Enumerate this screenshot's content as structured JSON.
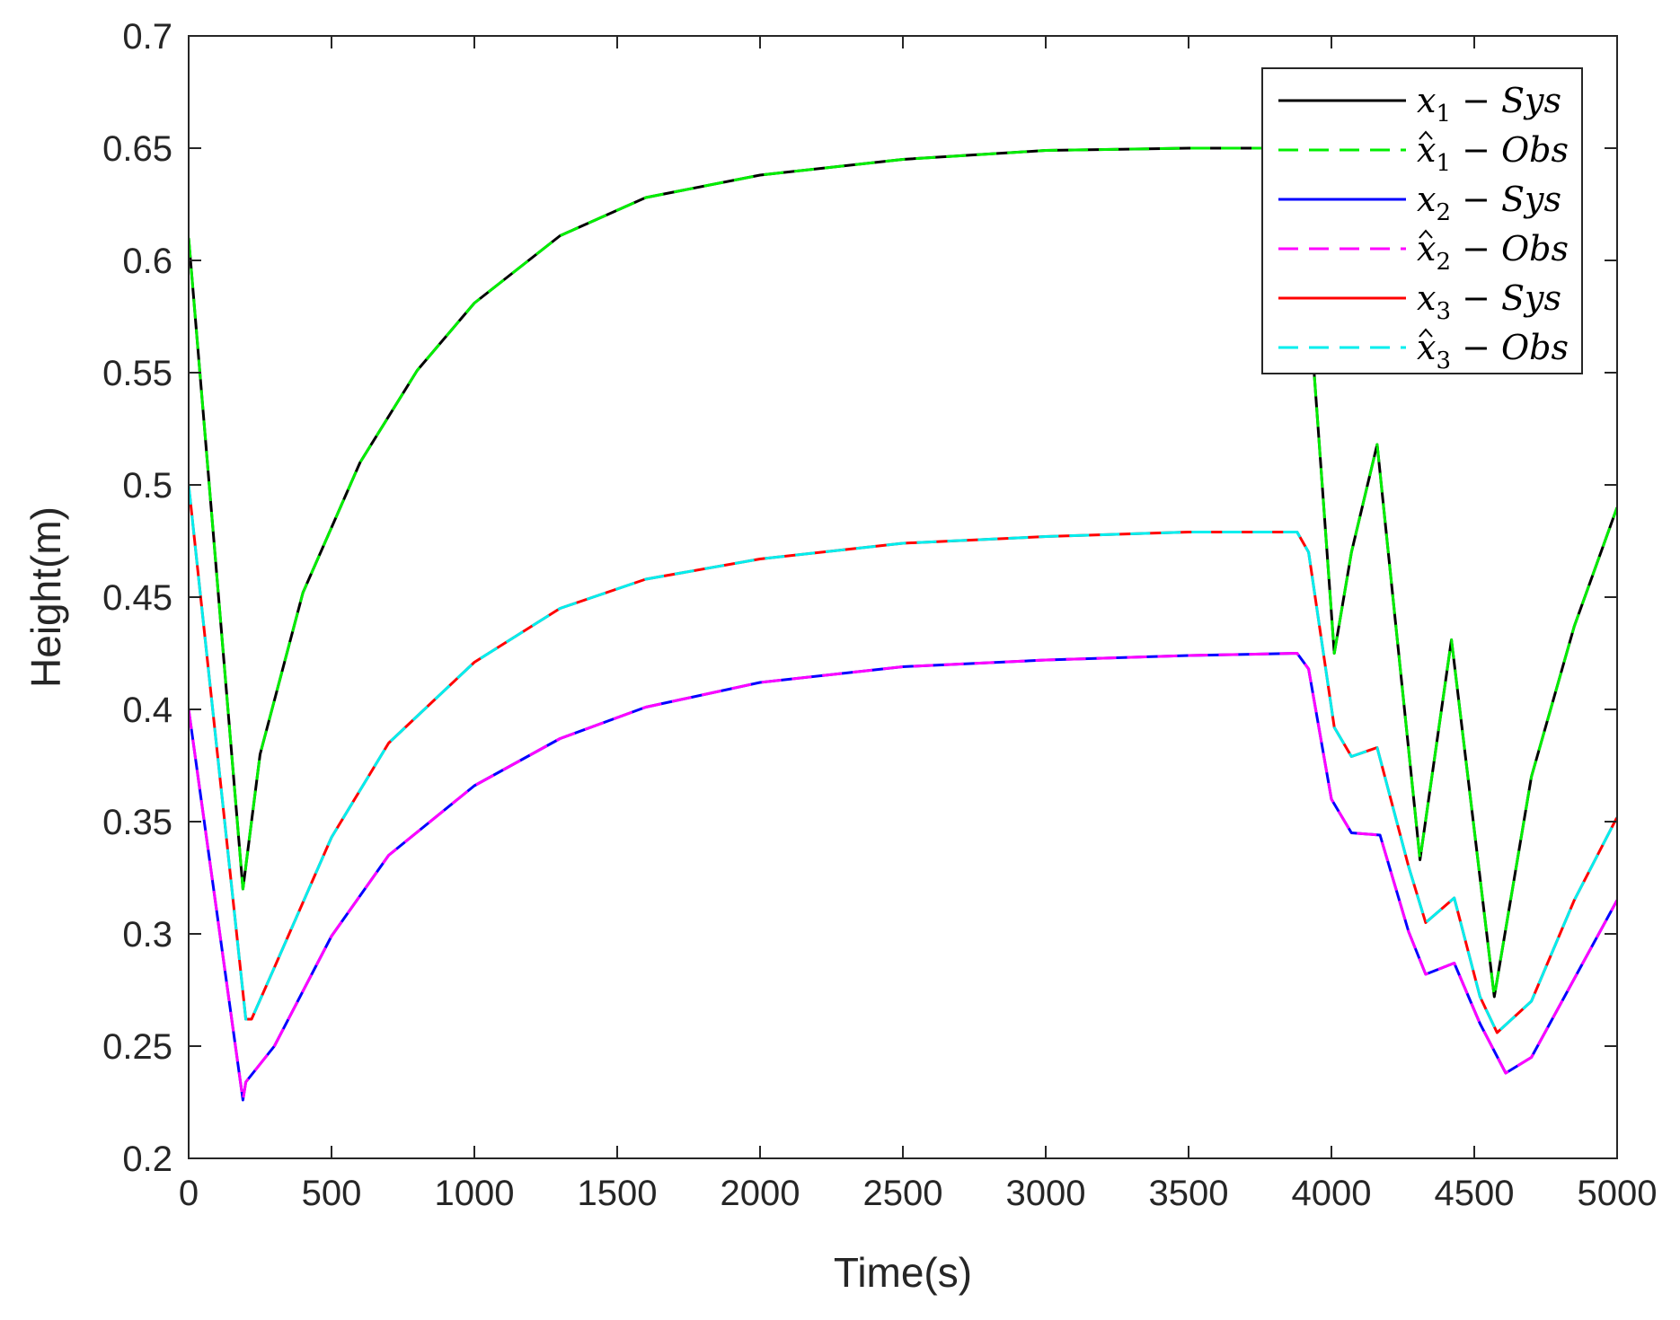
{
  "chart_data": {
    "type": "line",
    "title": "",
    "xlabel": "Time(s)",
    "ylabel": "Height(m)",
    "xlim": [
      0,
      5000
    ],
    "ylim": [
      0.2,
      0.7
    ],
    "grid": false,
    "legend_position": "top-right",
    "x_ticks": [
      0,
      500,
      1000,
      1500,
      2000,
      2500,
      3000,
      3500,
      4000,
      4500,
      5000
    ],
    "x_tick_labels": [
      "0",
      "500",
      "1000",
      "1500",
      "2000",
      "2500",
      "3000",
      "3500",
      "4000",
      "4500",
      "5000"
    ],
    "y_ticks": [
      0.2,
      0.25,
      0.3,
      0.35,
      0.4,
      0.45,
      0.5,
      0.55,
      0.6,
      0.65,
      0.7
    ],
    "y_tick_labels": [
      "0.2",
      "0.25",
      "0.3",
      "0.35",
      "0.4",
      "0.45",
      "0.5",
      "0.55",
      "0.6",
      "0.65",
      "0.7"
    ],
    "series": [
      {
        "name": "x1 - Sys",
        "legend": {
          "base": "x",
          "sub": "1",
          "hat": false,
          "suffix": " − Sys"
        },
        "color": "#000000",
        "dash": "solid",
        "x": [
          0,
          190,
          250,
          400,
          600,
          800,
          1000,
          1300,
          1600,
          2000,
          2500,
          3000,
          3500,
          3880,
          3900,
          4010,
          4070,
          4160,
          4310,
          4420,
          4570,
          4700,
          4850,
          5000
        ],
        "y": [
          0.61,
          0.32,
          0.38,
          0.452,
          0.51,
          0.551,
          0.581,
          0.611,
          0.628,
          0.638,
          0.645,
          0.649,
          0.65,
          0.65,
          0.62,
          0.425,
          0.47,
          0.518,
          0.333,
          0.431,
          0.272,
          0.37,
          0.437,
          0.49
        ]
      },
      {
        "name": "x̂1 - Obs",
        "legend": {
          "base": "x",
          "sub": "1",
          "hat": true,
          "suffix": " − Obs"
        },
        "color": "#00ee00",
        "dash": "dashed",
        "x": [
          0,
          190,
          250,
          400,
          600,
          800,
          1000,
          1300,
          1600,
          2000,
          2500,
          3000,
          3500,
          3880,
          3900,
          4010,
          4070,
          4160,
          4310,
          4420,
          4570,
          4700,
          4850,
          5000
        ],
        "y": [
          0.61,
          0.32,
          0.38,
          0.452,
          0.51,
          0.551,
          0.581,
          0.611,
          0.628,
          0.638,
          0.645,
          0.649,
          0.65,
          0.65,
          0.62,
          0.425,
          0.47,
          0.518,
          0.333,
          0.431,
          0.272,
          0.37,
          0.437,
          0.49
        ]
      },
      {
        "name": "x2 - Sys",
        "legend": {
          "base": "x",
          "sub": "2",
          "hat": false,
          "suffix": " − Sys"
        },
        "color": "#0000ff",
        "dash": "solid",
        "x": [
          0,
          190,
          200,
          300,
          500,
          700,
          1000,
          1300,
          1600,
          2000,
          2500,
          3000,
          3500,
          3880,
          3920,
          4000,
          4070,
          4170,
          4270,
          4330,
          4430,
          4520,
          4610,
          4700,
          4850,
          5000
        ],
        "y": [
          0.4,
          0.226,
          0.234,
          0.25,
          0.299,
          0.335,
          0.366,
          0.387,
          0.401,
          0.412,
          0.419,
          0.422,
          0.424,
          0.425,
          0.418,
          0.36,
          0.345,
          0.344,
          0.301,
          0.282,
          0.287,
          0.26,
          0.238,
          0.245,
          0.28,
          0.315
        ]
      },
      {
        "name": "x̂2 - Obs",
        "legend": {
          "base": "x",
          "sub": "2",
          "hat": true,
          "suffix": " − Obs"
        },
        "color": "#ff00ff",
        "dash": "dashed",
        "x": [
          0,
          190,
          200,
          300,
          500,
          700,
          1000,
          1300,
          1600,
          2000,
          2500,
          3000,
          3500,
          3880,
          3920,
          4000,
          4070,
          4170,
          4270,
          4330,
          4430,
          4520,
          4610,
          4700,
          4850,
          5000
        ],
        "y": [
          0.4,
          0.226,
          0.234,
          0.25,
          0.299,
          0.335,
          0.366,
          0.387,
          0.401,
          0.412,
          0.419,
          0.422,
          0.424,
          0.425,
          0.418,
          0.36,
          0.345,
          0.344,
          0.301,
          0.282,
          0.287,
          0.26,
          0.238,
          0.245,
          0.28,
          0.315
        ]
      },
      {
        "name": "x3 - Sys",
        "legend": {
          "base": "x",
          "sub": "3",
          "hat": false,
          "suffix": " − Sys"
        },
        "color": "#ff0000",
        "dash": "solid",
        "x": [
          0,
          200,
          220,
          300,
          500,
          700,
          1000,
          1300,
          1600,
          2000,
          2500,
          3000,
          3500,
          3880,
          3920,
          4010,
          4070,
          4160,
          4270,
          4330,
          4430,
          4520,
          4580,
          4700,
          4850,
          5000
        ],
        "y": [
          0.5,
          0.262,
          0.262,
          0.285,
          0.343,
          0.385,
          0.421,
          0.445,
          0.458,
          0.467,
          0.474,
          0.477,
          0.479,
          0.479,
          0.47,
          0.392,
          0.379,
          0.383,
          0.33,
          0.305,
          0.316,
          0.272,
          0.256,
          0.27,
          0.315,
          0.352
        ]
      },
      {
        "name": "x̂3 - Obs",
        "legend": {
          "base": "x",
          "sub": "3",
          "hat": true,
          "suffix": " − Obs"
        },
        "color": "#00eeee",
        "dash": "dashed",
        "x": [
          0,
          200,
          220,
          300,
          500,
          700,
          1000,
          1300,
          1600,
          2000,
          2500,
          3000,
          3500,
          3880,
          3920,
          4010,
          4070,
          4160,
          4270,
          4330,
          4430,
          4520,
          4580,
          4700,
          4850,
          5000
        ],
        "y": [
          0.5,
          0.262,
          0.262,
          0.285,
          0.343,
          0.385,
          0.421,
          0.445,
          0.458,
          0.467,
          0.474,
          0.477,
          0.479,
          0.479,
          0.47,
          0.392,
          0.379,
          0.383,
          0.33,
          0.305,
          0.316,
          0.272,
          0.256,
          0.27,
          0.315,
          0.352
        ]
      }
    ]
  }
}
